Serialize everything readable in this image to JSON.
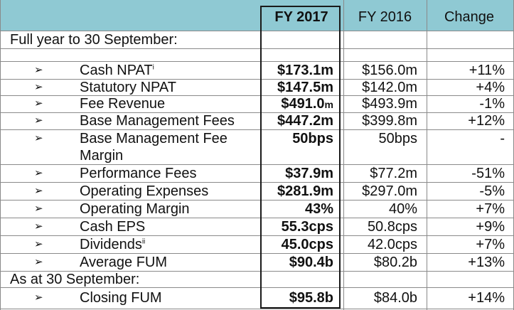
{
  "header": {
    "fy2017": "FY 2017",
    "fy2016": "FY 2016",
    "change": "Change"
  },
  "sections": {
    "full_year": "Full year to 30 September:",
    "as_at": "As at 30 September:"
  },
  "rows": [
    {
      "label": "Cash NPAT",
      "sup": "i",
      "fy2017": "$173.1m",
      "fy2016": "$156.0m",
      "change": "+11%"
    },
    {
      "label": "Statutory NPAT",
      "fy2017": "$147.5m",
      "fy2016": "$142.0m",
      "change": "+4%"
    },
    {
      "label": "Fee Revenue",
      "fy2017": "$491.0",
      "fy2017_suffix": "m",
      "fy2016": "$493.9m",
      "change": "-1%"
    },
    {
      "label": "Base Management Fees",
      "fy2017": "$447.2m",
      "fy2016": "$399.8m",
      "change": "+12%"
    },
    {
      "label": "Base Management Fee",
      "label2": "Margin",
      "fy2017": "50bps",
      "fy2016": "50bps",
      "change": "-"
    },
    {
      "label": "Performance Fees",
      "fy2017": "$37.9m",
      "fy2016": "$77.2m",
      "change": "-51%"
    },
    {
      "label": "Operating Expenses",
      "fy2017": "$281.9m",
      "fy2016": "$297.0m",
      "change": "-5%"
    },
    {
      "label": "Operating Margin",
      "fy2017": "43%",
      "fy2016": "40%",
      "change": "+7%"
    },
    {
      "label": "Cash EPS",
      "fy2017": "55.3cps",
      "fy2016": "50.8cps",
      "change": "+9%"
    },
    {
      "label": "Dividends",
      "sup": "ii",
      "fy2017": "45.0cps",
      "fy2016": "42.0cps",
      "change": "+7%"
    },
    {
      "label": "Average FUM",
      "fy2017": "$90.4b",
      "fy2016": "$80.2b",
      "change": "+13%"
    },
    {
      "label": "Closing FUM",
      "fy2017": "$95.8b",
      "fy2016": "$84.0b",
      "change": "+14%"
    }
  ],
  "arrow_glyph": "➢"
}
